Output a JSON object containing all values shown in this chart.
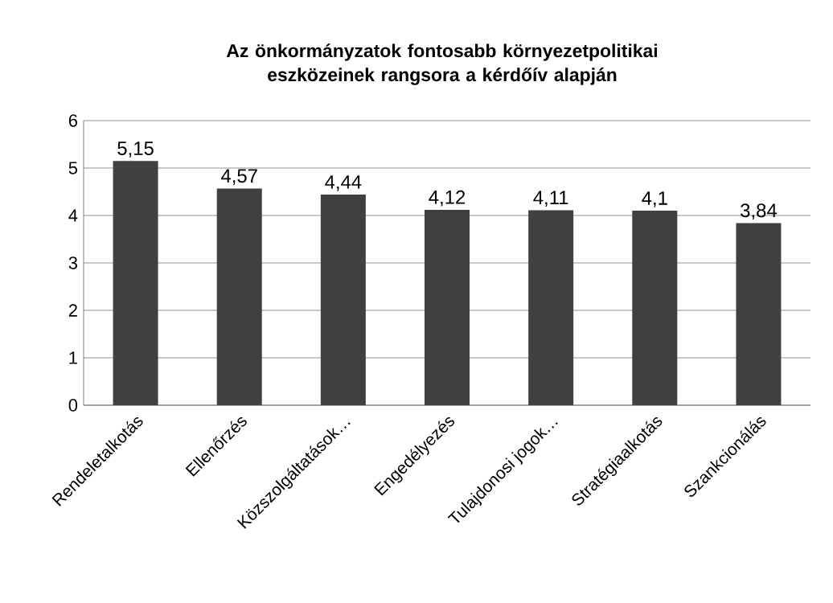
{
  "chart_data": {
    "type": "bar",
    "title": "Az önkormányzatok fontosabb környezetpolitikai eszközeinek rangsora a kérdőív alapján",
    "categories": [
      "Rendeletalkotás",
      "Ellenőrzés",
      "Közszolgáltatások…",
      "Engedélyezés",
      "Tulajdonosi jogok…",
      "Stratégiaalkotás",
      "Szankcionálás"
    ],
    "values": [
      5.15,
      4.57,
      4.44,
      4.12,
      4.11,
      4.1,
      3.84
    ],
    "value_labels": [
      "5,15",
      "4,57",
      "4,44",
      "4,12",
      "4,11",
      "4,1",
      "3,84"
    ],
    "color": "#404040",
    "ylim": [
      0,
      6
    ],
    "yticks": [
      0,
      1,
      2,
      3,
      4,
      5,
      6
    ],
    "grid": "y"
  }
}
